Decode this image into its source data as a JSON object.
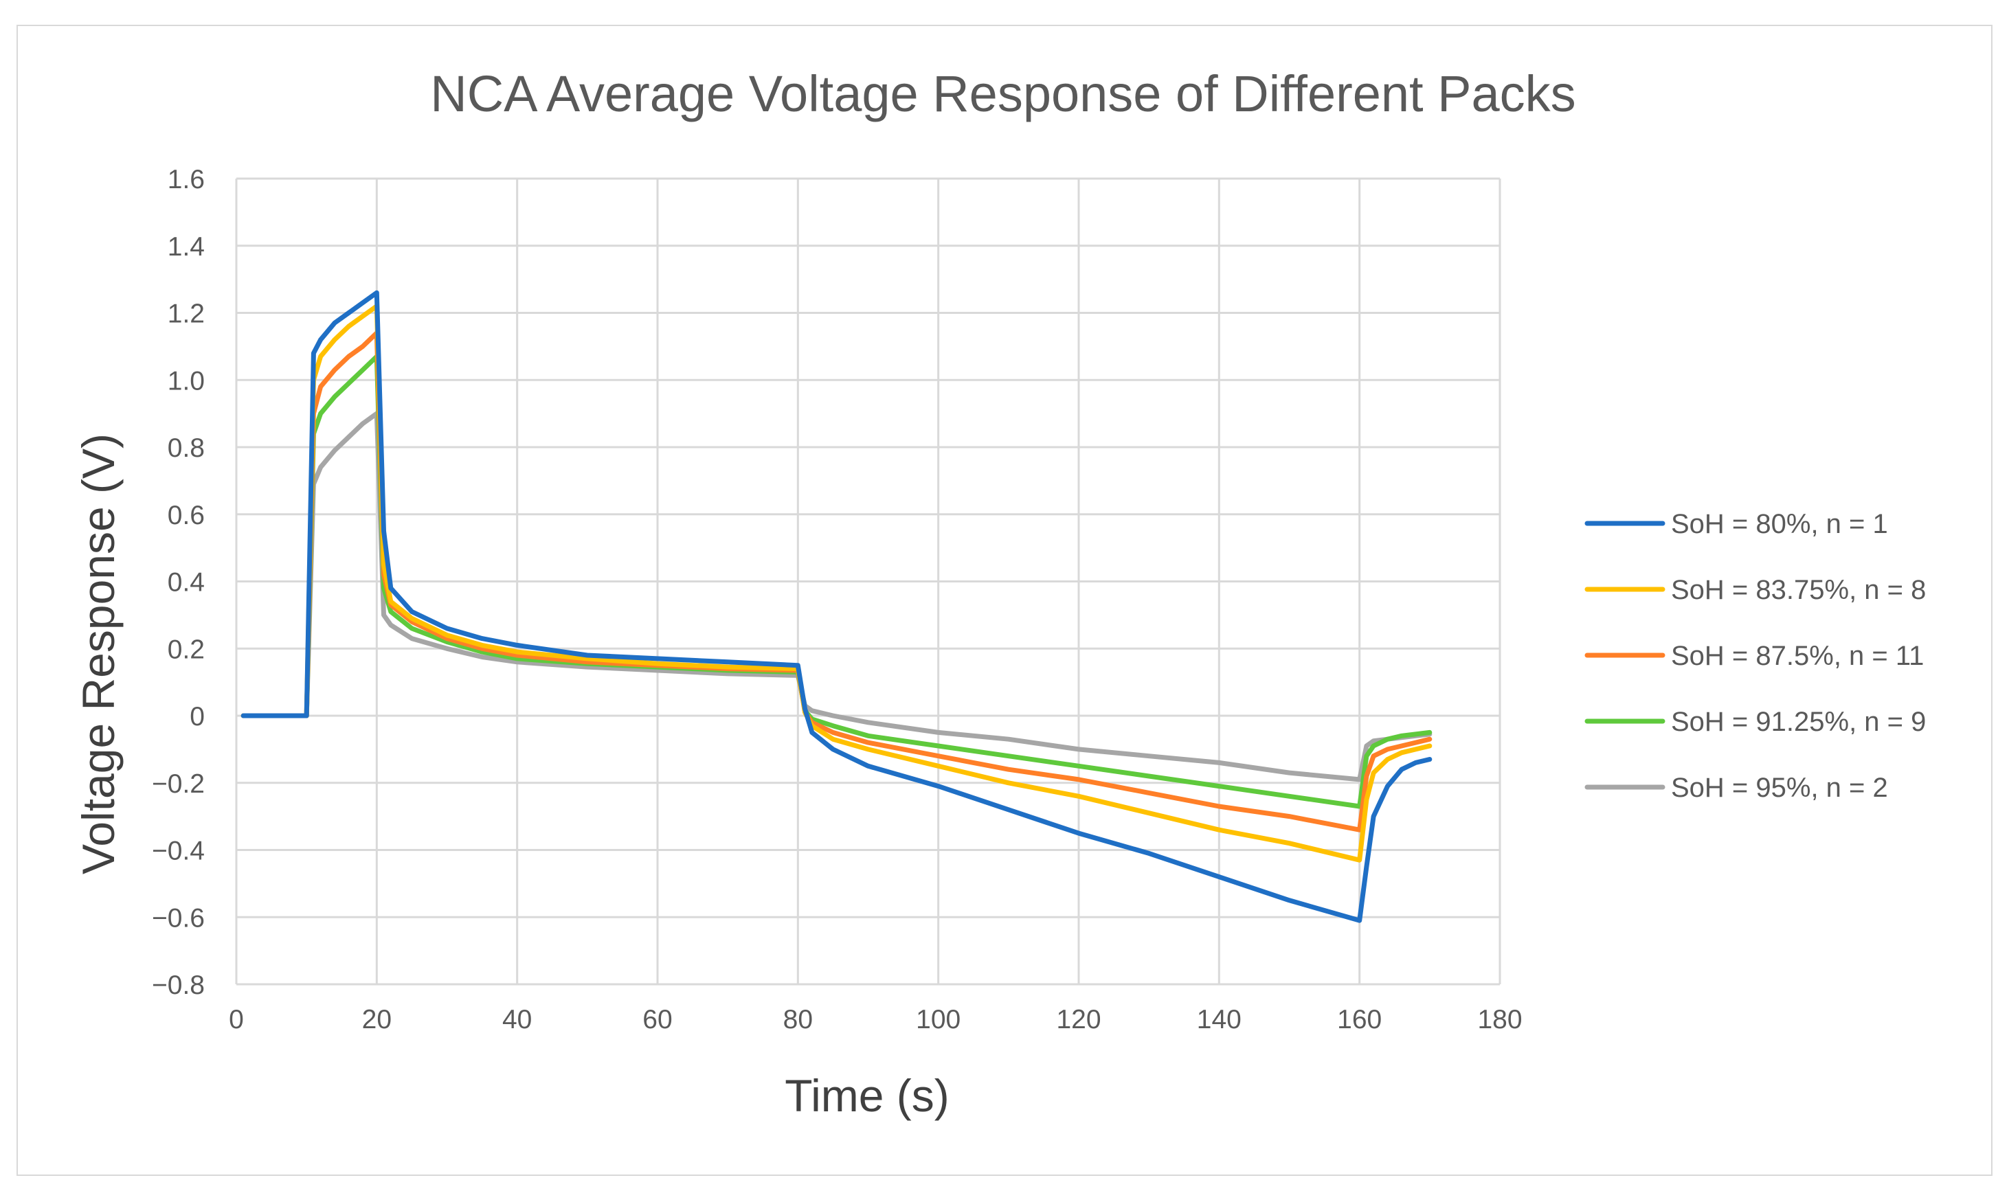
{
  "chart_data": {
    "type": "line",
    "title": "NCA Average Voltage Response of Different Packs",
    "xlabel": "Time (s)",
    "ylabel": "Voltage Response (V)",
    "xlim": [
      0,
      180
    ],
    "ylim": [
      -0.8,
      1.6
    ],
    "x_ticks": [
      "0",
      "20",
      "40",
      "60",
      "80",
      "100",
      "120",
      "140",
      "160",
      "180"
    ],
    "y_ticks": [
      "1.6",
      "1.4",
      "1.2",
      "1.0",
      "0.8",
      "0.6",
      "0.4",
      "0.2",
      "0",
      "−0.2",
      "−0.4",
      "−0.6",
      "−0.8"
    ],
    "grid": true,
    "legend_position": "right",
    "series": [
      {
        "name": "SoH = 80%, n = 1",
        "color": "#1f6fc5",
        "points": [
          [
            1,
            0
          ],
          [
            10,
            0
          ],
          [
            11,
            1.08
          ],
          [
            12,
            1.12
          ],
          [
            14,
            1.17
          ],
          [
            16,
            1.2
          ],
          [
            18,
            1.23
          ],
          [
            20,
            1.26
          ],
          [
            21,
            0.55
          ],
          [
            22,
            0.38
          ],
          [
            25,
            0.31
          ],
          [
            30,
            0.26
          ],
          [
            35,
            0.23
          ],
          [
            40,
            0.21
          ],
          [
            50,
            0.18
          ],
          [
            60,
            0.17
          ],
          [
            70,
            0.16
          ],
          [
            80,
            0.15
          ],
          [
            81,
            0.02
          ],
          [
            82,
            -0.05
          ],
          [
            85,
            -0.1
          ],
          [
            90,
            -0.15
          ],
          [
            100,
            -0.21
          ],
          [
            110,
            -0.28
          ],
          [
            120,
            -0.35
          ],
          [
            130,
            -0.41
          ],
          [
            140,
            -0.48
          ],
          [
            150,
            -0.55
          ],
          [
            160,
            -0.61
          ],
          [
            161,
            -0.45
          ],
          [
            162,
            -0.3
          ],
          [
            164,
            -0.21
          ],
          [
            166,
            -0.16
          ],
          [
            168,
            -0.14
          ],
          [
            170,
            -0.13
          ]
        ]
      },
      {
        "name": "SoH = 83.75%, n = 8",
        "color": "#ffc000",
        "points": [
          [
            1,
            0
          ],
          [
            10,
            0
          ],
          [
            11,
            1.0
          ],
          [
            12,
            1.07
          ],
          [
            14,
            1.12
          ],
          [
            16,
            1.16
          ],
          [
            18,
            1.19
          ],
          [
            20,
            1.22
          ],
          [
            21,
            0.45
          ],
          [
            22,
            0.34
          ],
          [
            25,
            0.29
          ],
          [
            30,
            0.24
          ],
          [
            35,
            0.21
          ],
          [
            40,
            0.19
          ],
          [
            50,
            0.17
          ],
          [
            60,
            0.155
          ],
          [
            70,
            0.145
          ],
          [
            80,
            0.14
          ],
          [
            81,
            0.01
          ],
          [
            82,
            -0.03
          ],
          [
            85,
            -0.07
          ],
          [
            90,
            -0.1
          ],
          [
            100,
            -0.15
          ],
          [
            110,
            -0.2
          ],
          [
            120,
            -0.24
          ],
          [
            130,
            -0.29
          ],
          [
            140,
            -0.34
          ],
          [
            150,
            -0.38
          ],
          [
            160,
            -0.43
          ],
          [
            161,
            -0.25
          ],
          [
            162,
            -0.17
          ],
          [
            164,
            -0.13
          ],
          [
            166,
            -0.11
          ],
          [
            168,
            -0.1
          ],
          [
            170,
            -0.09
          ]
        ]
      },
      {
        "name": "SoH = 87.5%, n = 11",
        "color": "#ff7f27",
        "points": [
          [
            1,
            0
          ],
          [
            10,
            0
          ],
          [
            11,
            0.9
          ],
          [
            12,
            0.98
          ],
          [
            14,
            1.03
          ],
          [
            16,
            1.07
          ],
          [
            18,
            1.1
          ],
          [
            20,
            1.14
          ],
          [
            21,
            0.42
          ],
          [
            22,
            0.33
          ],
          [
            25,
            0.28
          ],
          [
            30,
            0.23
          ],
          [
            35,
            0.2
          ],
          [
            40,
            0.18
          ],
          [
            50,
            0.16
          ],
          [
            60,
            0.15
          ],
          [
            70,
            0.14
          ],
          [
            80,
            0.135
          ],
          [
            81,
            0.01
          ],
          [
            82,
            -0.02
          ],
          [
            85,
            -0.05
          ],
          [
            90,
            -0.08
          ],
          [
            100,
            -0.12
          ],
          [
            110,
            -0.16
          ],
          [
            120,
            -0.19
          ],
          [
            130,
            -0.23
          ],
          [
            140,
            -0.27
          ],
          [
            150,
            -0.3
          ],
          [
            160,
            -0.34
          ],
          [
            161,
            -0.18
          ],
          [
            162,
            -0.12
          ],
          [
            164,
            -0.1
          ],
          [
            166,
            -0.09
          ],
          [
            168,
            -0.08
          ],
          [
            170,
            -0.07
          ]
        ]
      },
      {
        "name": "SoH = 91.25%, n = 9",
        "color": "#5fc93c",
        "points": [
          [
            1,
            0
          ],
          [
            10,
            0
          ],
          [
            11,
            0.84
          ],
          [
            12,
            0.9
          ],
          [
            14,
            0.95
          ],
          [
            16,
            0.99
          ],
          [
            18,
            1.03
          ],
          [
            20,
            1.07
          ],
          [
            21,
            0.38
          ],
          [
            22,
            0.31
          ],
          [
            25,
            0.26
          ],
          [
            30,
            0.22
          ],
          [
            35,
            0.19
          ],
          [
            40,
            0.17
          ],
          [
            50,
            0.155
          ],
          [
            60,
            0.145
          ],
          [
            70,
            0.135
          ],
          [
            80,
            0.13
          ],
          [
            81,
            0.015
          ],
          [
            82,
            -0.01
          ],
          [
            85,
            -0.03
          ],
          [
            90,
            -0.06
          ],
          [
            100,
            -0.09
          ],
          [
            110,
            -0.12
          ],
          [
            120,
            -0.15
          ],
          [
            130,
            -0.18
          ],
          [
            140,
            -0.21
          ],
          [
            150,
            -0.24
          ],
          [
            160,
            -0.27
          ],
          [
            161,
            -0.12
          ],
          [
            162,
            -0.09
          ],
          [
            164,
            -0.07
          ],
          [
            166,
            -0.06
          ],
          [
            168,
            -0.055
          ],
          [
            170,
            -0.05
          ]
        ]
      },
      {
        "name": "SoH = 95%, n = 2",
        "color": "#a6a6a6",
        "points": [
          [
            1,
            0
          ],
          [
            10,
            0
          ],
          [
            11,
            0.69
          ],
          [
            12,
            0.74
          ],
          [
            14,
            0.79
          ],
          [
            16,
            0.83
          ],
          [
            18,
            0.87
          ],
          [
            20,
            0.9
          ],
          [
            21,
            0.3
          ],
          [
            22,
            0.27
          ],
          [
            25,
            0.23
          ],
          [
            30,
            0.2
          ],
          [
            35,
            0.175
          ],
          [
            40,
            0.16
          ],
          [
            50,
            0.145
          ],
          [
            60,
            0.135
          ],
          [
            70,
            0.125
          ],
          [
            80,
            0.12
          ],
          [
            81,
            0.03
          ],
          [
            82,
            0.015
          ],
          [
            85,
            0.0
          ],
          [
            90,
            -0.02
          ],
          [
            100,
            -0.05
          ],
          [
            110,
            -0.07
          ],
          [
            120,
            -0.1
          ],
          [
            130,
            -0.12
          ],
          [
            140,
            -0.14
          ],
          [
            150,
            -0.17
          ],
          [
            160,
            -0.19
          ],
          [
            161,
            -0.09
          ],
          [
            162,
            -0.075
          ],
          [
            164,
            -0.07
          ],
          [
            166,
            -0.065
          ],
          [
            168,
            -0.06
          ],
          [
            170,
            -0.055
          ]
        ]
      }
    ]
  }
}
